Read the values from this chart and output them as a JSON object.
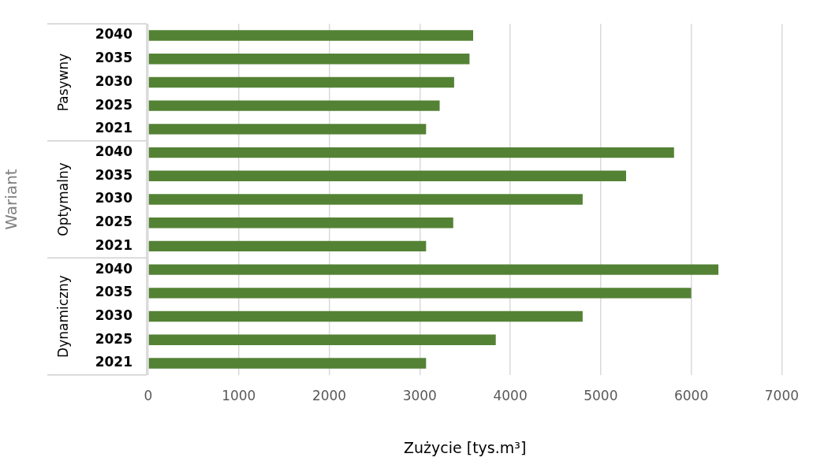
{
  "chart_data": {
    "type": "bar",
    "orientation": "horizontal",
    "categories": [
      "2040",
      "2035",
      "2030",
      "2025",
      "2021",
      "2040",
      "2035",
      "2030",
      "2025",
      "2021",
      "2040",
      "2035",
      "2030",
      "2025",
      "2021"
    ],
    "values": [
      3590,
      3550,
      3380,
      3220,
      3070,
      5810,
      5280,
      4800,
      3370,
      3070,
      6300,
      6000,
      4800,
      3840,
      3070
    ],
    "color": "#548235",
    "xlim": [
      0,
      7000
    ],
    "xticks": [
      0,
      1000,
      2000,
      3000,
      4000,
      5000,
      6000,
      7000
    ],
    "xlabel": "Zużycie [tys.m³]",
    "ylabel": "Wariant",
    "annotations": [
      "Pasywny",
      "Optymalny",
      "Dynamiczny"
    ],
    "grid": "x",
    "legend": false
  }
}
